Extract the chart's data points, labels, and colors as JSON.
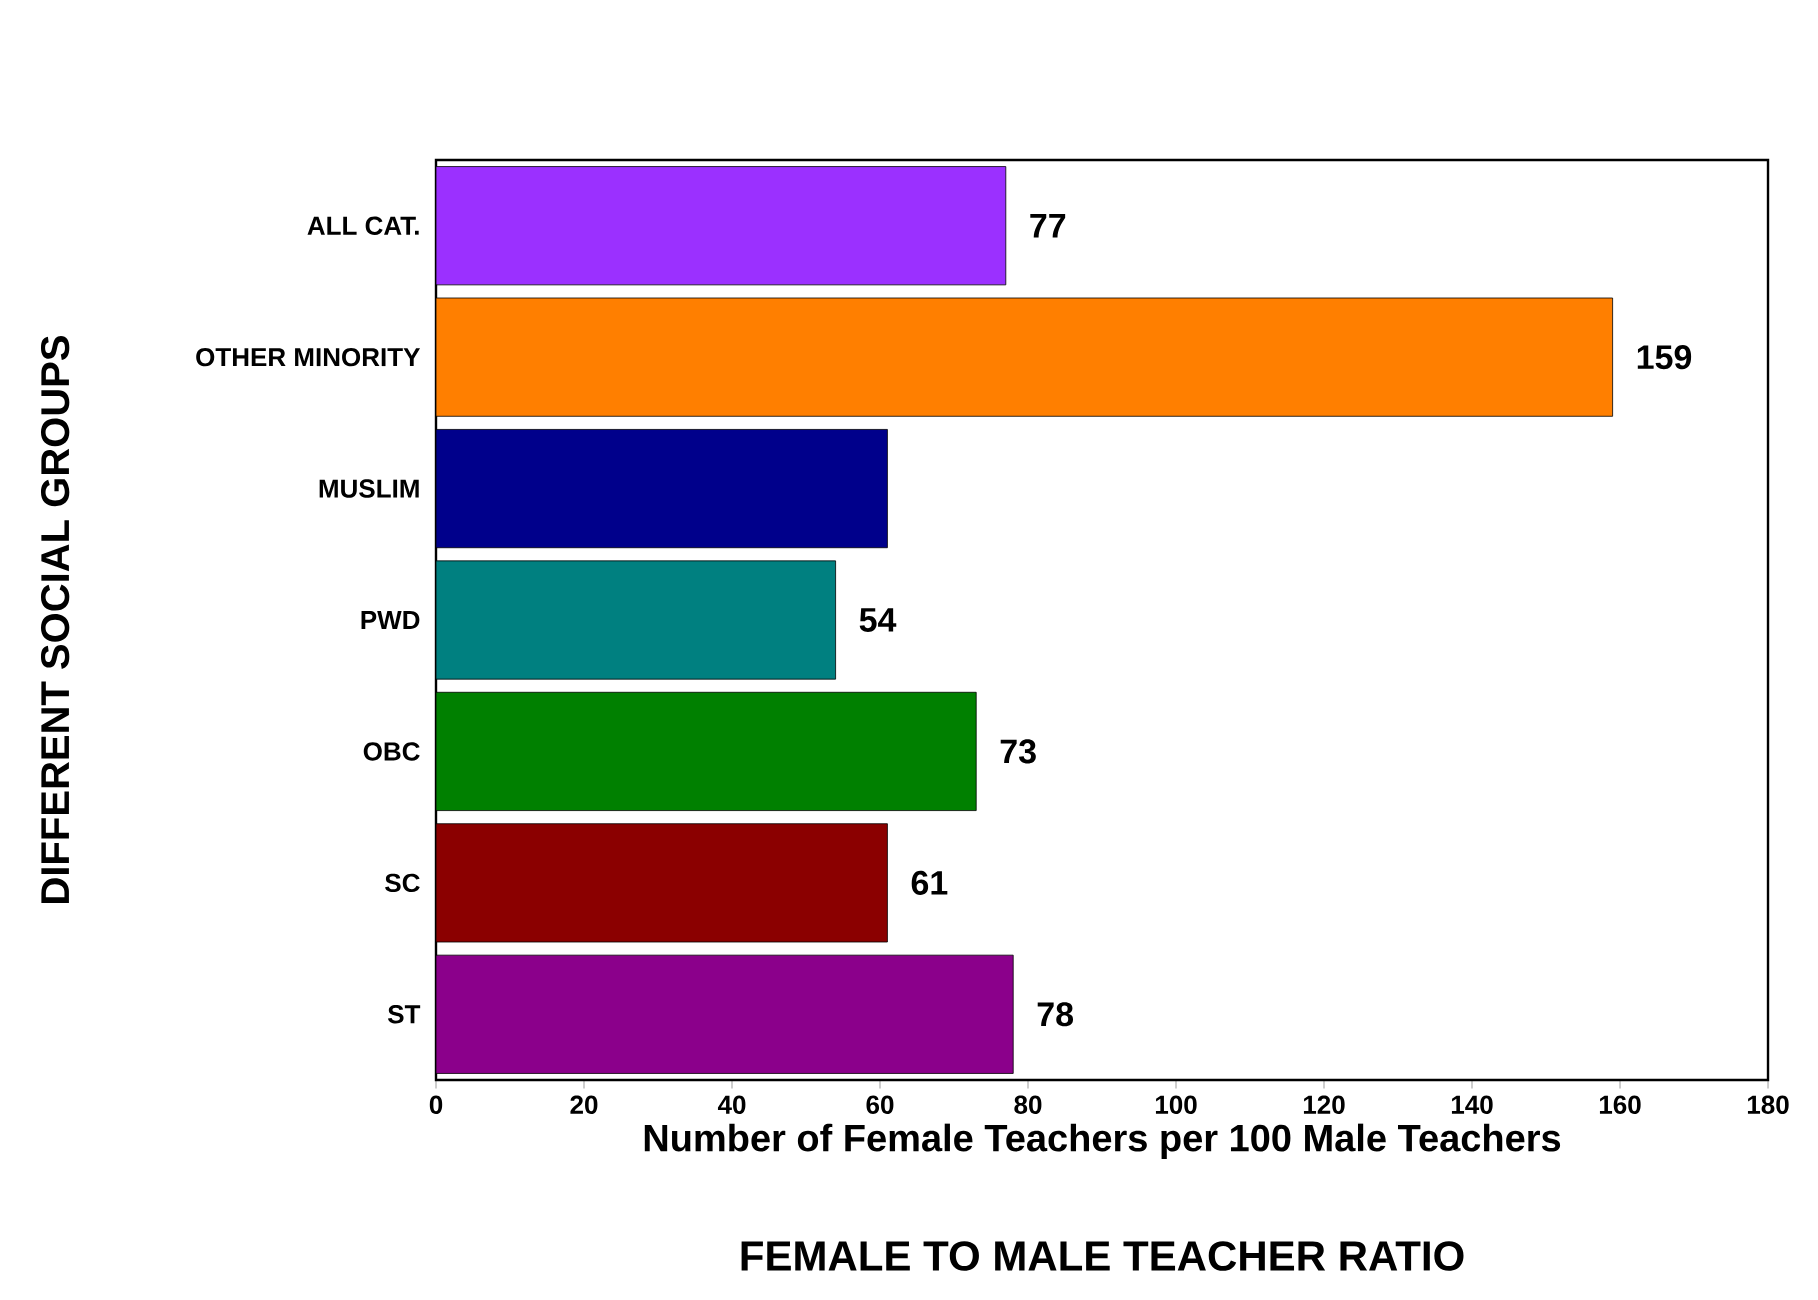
{
  "chart_data": {
    "type": "bar",
    "orientation": "horizontal",
    "title": "FEMALE TO MALE TEACHER RATIO",
    "xlabel": "Number of Female Teachers per 100 Male Teachers",
    "ylabel": "DIFFERENT SOCIAL GROUPS",
    "categories": [
      "ALL CAT.",
      "OTHER MINORITY",
      "MUSLIM",
      "PWD",
      "OBC",
      "SC",
      "ST"
    ],
    "values": [
      77,
      159,
      61,
      54,
      73,
      61,
      78
    ],
    "value_labels": [
      "77",
      "159",
      null,
      "54",
      "73",
      "61",
      "78"
    ],
    "colors": [
      "#9b30ff",
      "#ff7f00",
      "#00008b",
      "#008080",
      "#008000",
      "#8b0000",
      "#8b008b"
    ],
    "xlim": [
      0,
      180
    ],
    "xticks": [
      0,
      20,
      40,
      60,
      80,
      100,
      120,
      140,
      160,
      180
    ]
  }
}
